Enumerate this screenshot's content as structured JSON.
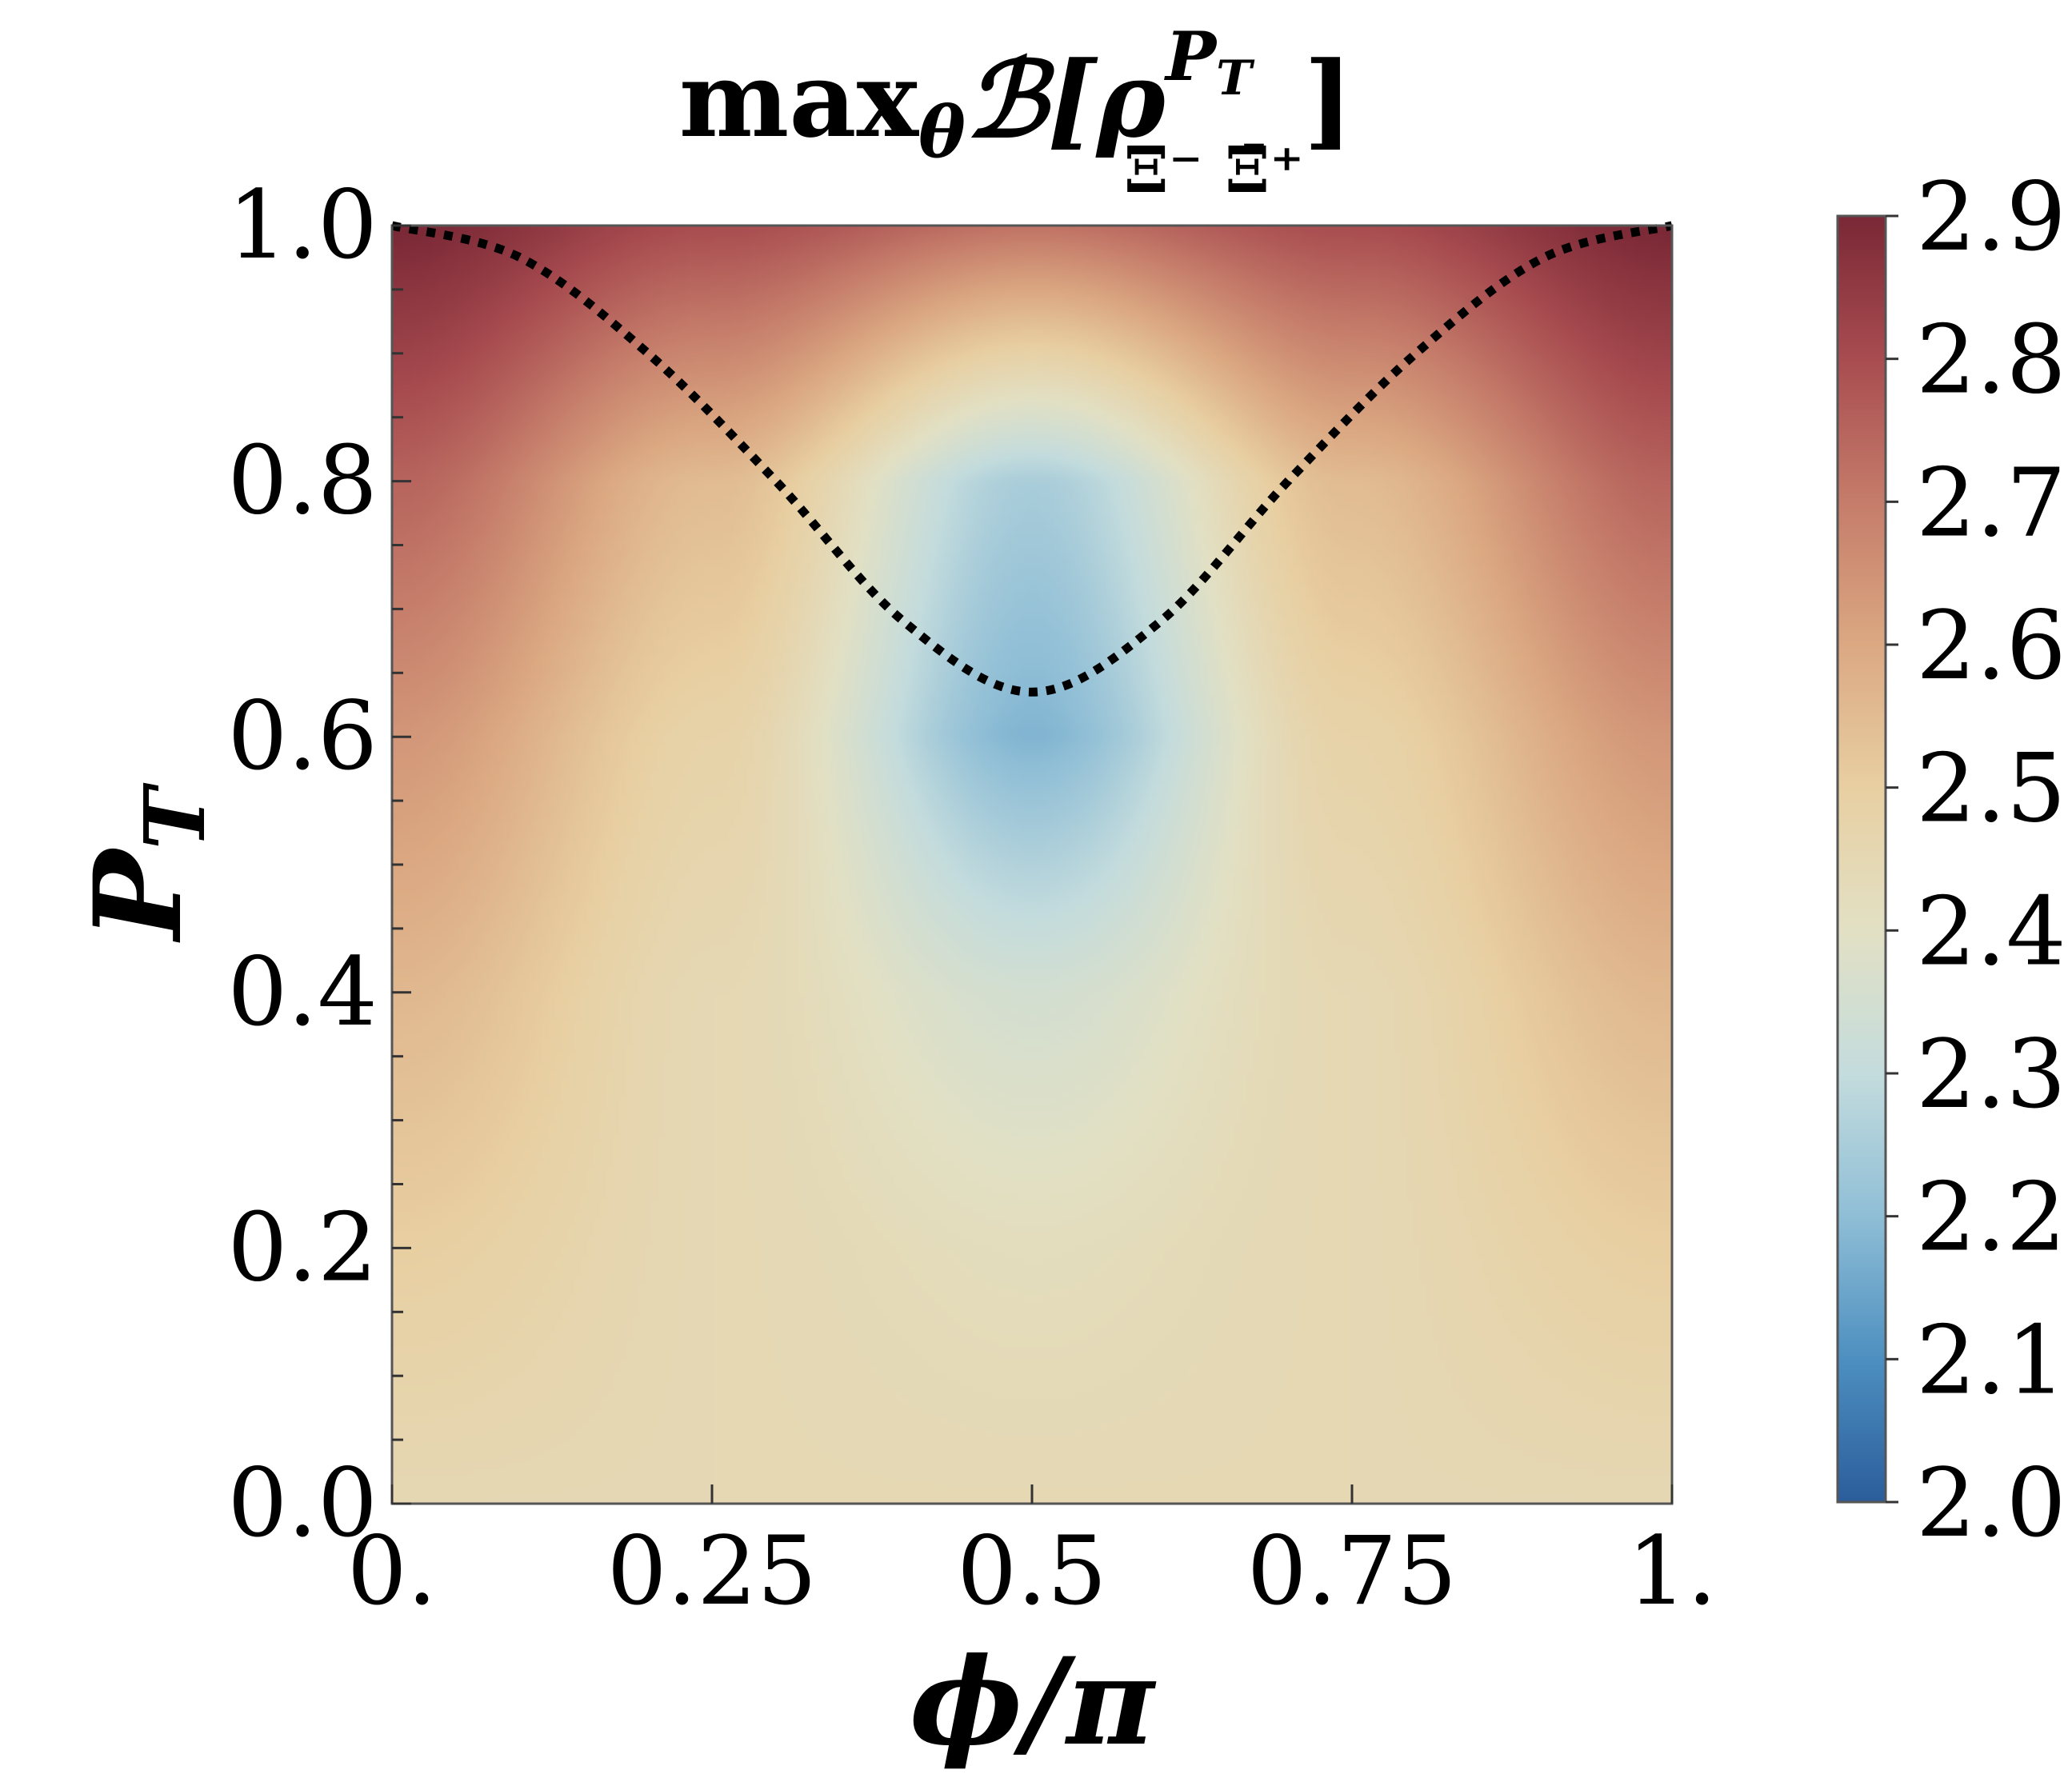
{
  "chart_data": {
    "type": "heatmap",
    "title": {
      "main": "max",
      "sub": "θ",
      "func": "ℬ[",
      "rho": "ρ",
      "sup": "P",
      "sup_sub": "T",
      "lower": "Ξ⁻ Ξ̄⁺",
      "close": "]"
    },
    "xlabel": "ϕ/π",
    "ylabel": {
      "main": "P",
      "sub": "T"
    },
    "x_ticks": [
      0,
      0.25,
      0.5,
      0.75,
      1
    ],
    "x_tick_labels": [
      "0.",
      "0.25",
      "0.5",
      "0.75",
      "1."
    ],
    "y_ticks": [
      0,
      0.2,
      0.4,
      0.6,
      0.8,
      1.0
    ],
    "y_tick_labels": [
      "0.0",
      "0.2",
      "0.4",
      "0.6",
      "0.8",
      "1.0"
    ],
    "xlim": [
      0,
      1
    ],
    "ylim": [
      0,
      1
    ],
    "colorbar": {
      "range": [
        2.0,
        2.9
      ],
      "ticks": [
        2.0,
        2.1,
        2.2,
        2.3,
        2.4,
        2.5,
        2.6,
        2.7,
        2.8,
        2.9
      ],
      "tick_labels": [
        "2.0",
        "2.1",
        "2.2",
        "2.3",
        "2.4",
        "2.5",
        "2.6",
        "2.7",
        "2.8",
        "2.9"
      ],
      "colormap": [
        "#2b5d9b",
        "#4d8fc0",
        "#8fbed6",
        "#c4dcdd",
        "#e2e0c4",
        "#e8cfa2",
        "#dba882",
        "#c57c6a",
        "#a84c50",
        "#7a2836"
      ]
    },
    "value_samples": {
      "x": [
        0,
        0.25,
        0.5,
        0.75,
        1
      ],
      "y": [
        0,
        0.2,
        0.4,
        0.6,
        0.8,
        1.0
      ],
      "z": [
        [
          2.45,
          2.45,
          2.45,
          2.45,
          2.45
        ],
        [
          2.5,
          2.45,
          2.42,
          2.45,
          2.5
        ],
        [
          2.56,
          2.45,
          2.35,
          2.45,
          2.56
        ],
        [
          2.64,
          2.48,
          2.18,
          2.48,
          2.64
        ],
        [
          2.75,
          2.55,
          2.25,
          2.55,
          2.75
        ],
        [
          2.9,
          2.8,
          2.72,
          2.8,
          2.9
        ]
      ]
    },
    "dotted_curve": {
      "style": "dotted",
      "color": "#000000",
      "points": [
        [
          0,
          1.0
        ],
        [
          0.1,
          0.975
        ],
        [
          0.2,
          0.9
        ],
        [
          0.3,
          0.8
        ],
        [
          0.4,
          0.69
        ],
        [
          0.5,
          0.635
        ],
        [
          0.6,
          0.69
        ],
        [
          0.7,
          0.8
        ],
        [
          0.8,
          0.9
        ],
        [
          0.9,
          0.975
        ],
        [
          1,
          1.0
        ]
      ]
    },
    "grid": false,
    "legend": "none"
  }
}
